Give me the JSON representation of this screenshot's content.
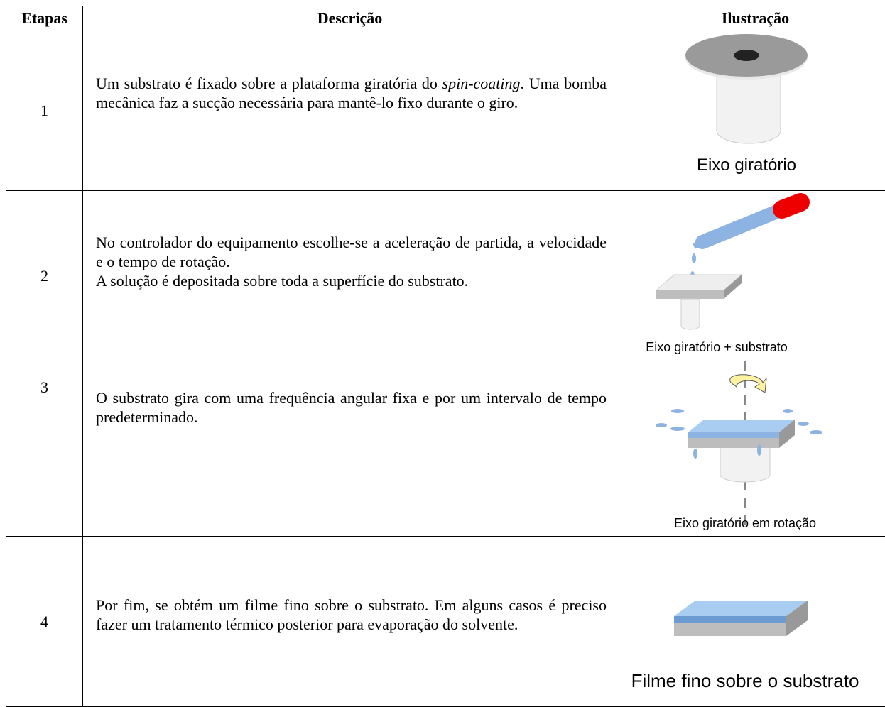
{
  "table": {
    "headers": [
      "Etapas",
      "Descrição",
      "Ilustração"
    ],
    "rows": [
      {
        "step": "1",
        "description": [
          "Um substrato é fixado sobre a plataforma giratória do ",
          "spin-coating",
          ". Uma bomba mecânica faz a sucção necessária para mantê-lo fixo durante o giro."
        ],
        "caption": "Eixo giratório"
      },
      {
        "step": "2",
        "description": [
          "No controlador do equipamento escolhe-se a aceleração de partida, a velocidade e o tempo de rotação.",
          "A solução é depositada sobre toda a superfície do substrato."
        ],
        "caption": "Eixo giratório + substrato"
      },
      {
        "step": "3",
        "description": [
          "O substrato gira com uma frequência angular fixa e por um intervalo de tempo predeterminado."
        ],
        "caption": "Eixo giratório em rotação"
      },
      {
        "step": "4",
        "description": [
          "Por fim, se obtém um filme fino sobre o substrato. Em alguns casos é preciso fazer um tratamento térmico posterior para evaporação do solvente."
        ],
        "caption": "Filme fino sobre o substrato"
      }
    ]
  }
}
